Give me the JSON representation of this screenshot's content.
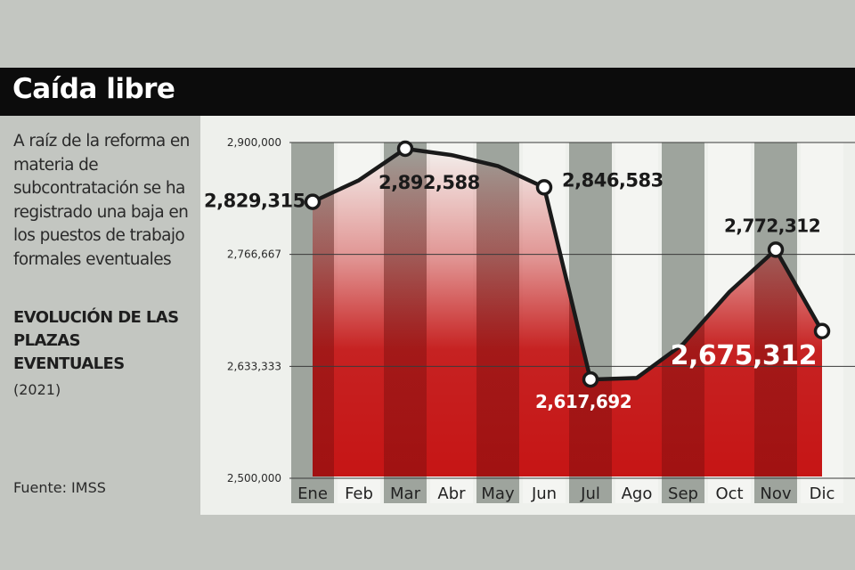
{
  "title": "Caída libre",
  "description": "A raíz de la reforma en materia de subcontratación se ha registrado una baja en los puestos de trabajo formales eventuales",
  "subtitle": "EVOLUCIÓN DE LAS PLAZAS EVENTUALES",
  "year": "(2021)",
  "source": "Fuente: IMSS",
  "colors": {
    "title_bar": "#0c0c0c",
    "background": "#c3c6c1",
    "chart_background": "#eef0ec",
    "gray_column": "#9ea49d",
    "red": "#cc1a1a",
    "line": "#1a1a1a"
  },
  "chart_data": {
    "type": "line",
    "title": "",
    "xlabel": "",
    "ylabel": "",
    "categories": [
      "Ene",
      "Feb",
      "Mar",
      "Abr",
      "May",
      "Jun",
      "Jul",
      "Ago",
      "Sep",
      "Oct",
      "Nov",
      "Dic"
    ],
    "series": [
      {
        "values": [
          2829315,
          2855000,
          2892588,
          2885000,
          2872000,
          2846583,
          2617692,
          2619500,
          2660000,
          2722000,
          2772312,
          2675312
        ]
      }
    ],
    "data_labels": [
      {
        "category": "Ene",
        "text": "2,829,315"
      },
      {
        "category": "Mar",
        "text": "2,892,588"
      },
      {
        "category": "Jun",
        "text": "2,846,583"
      },
      {
        "category": "Jul",
        "text": "2,617,692"
      },
      {
        "category": "Nov",
        "text": "2,772,312"
      },
      {
        "category": "Dic",
        "text": "2,675,312"
      }
    ],
    "ylim": [
      2500000,
      2900000
    ],
    "yticks": [
      2500000,
      2633333,
      2766667,
      2900000
    ],
    "ytick_labels": [
      "2,500,000",
      "2,633,333",
      "2,766,667",
      "2,900,000"
    ],
    "grid": true,
    "legend": "none"
  }
}
